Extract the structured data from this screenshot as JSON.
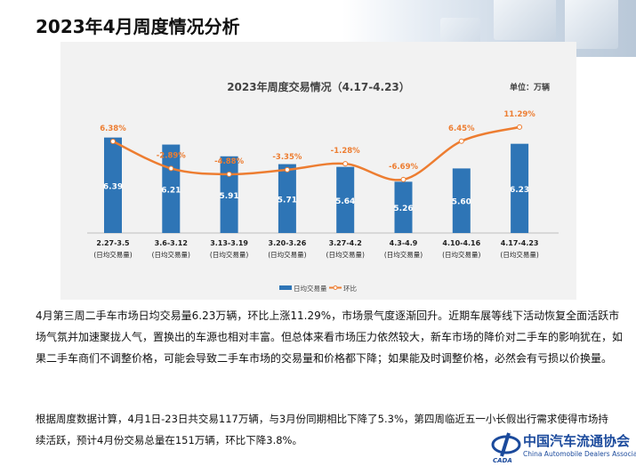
{
  "header": {
    "title": "2023年4月周度情况分析"
  },
  "chart_data": {
    "type": "bar+line",
    "title": "2023年周度交易情况（4.17-4.23）",
    "unit": "单位：万辆",
    "categories": [
      "2.27-3.5",
      "3.6-3.12",
      "3.13-3.19",
      "3.20-3.26",
      "3.27-4.2",
      "4.3-4.9",
      "4.10-4.16",
      "4.17-4.23"
    ],
    "category_sublabel": "(日均交易量)",
    "series": [
      {
        "name": "日均交易量",
        "type": "bar",
        "color": "#2e75b6",
        "values": [
          6.39,
          6.21,
          5.91,
          5.71,
          5.64,
          5.26,
          5.6,
          6.23
        ],
        "labels": [
          "6.39",
          "6.21",
          "5.91",
          "5.71",
          "5.64",
          "5.26",
          "5.60",
          "6.23"
        ]
      },
      {
        "name": "环比",
        "type": "line",
        "color": "#ed7d31",
        "values": [
          6.38,
          -2.89,
          -4.88,
          -3.35,
          -1.28,
          -6.69,
          6.45,
          11.29
        ],
        "labels": [
          "6.38%",
          "-2.89%",
          "-4.88%",
          "-3.35%",
          "-1.28%",
          "-6.69%",
          "6.45%",
          "11.29%"
        ]
      }
    ],
    "legend": "bottom",
    "grid": false
  },
  "text": {
    "p1": "4月第三周二手车市场日均交易量6.23万辆，环比上涨11.29%，市场景气度逐渐回升。近期车展等线下活动恢复全面活跃市场气氛并加速聚拢人气，置换出的车源也相对丰富。但总体来看市场压力依然较大，新车市场的降价对二手车的影响犹在，如果二手车商们不调整价格，可能会导致二手车市场的交易量和价格都下降；如果能及时调整价格，必然会有亏损以价换量。",
    "p2": "根据周度数据计算，4月1日-23日共交易117万辆，与3月份同期相比下降了5.3%，第四周临近五一小长假出行需求使得市场持续活跃，预计4月份交易总量在151万辆，环比下降3.8%。"
  },
  "logo": {
    "cn": "中国汽车流通协会",
    "en": "China Automobile Dealers Association",
    "mark": "CADA"
  }
}
